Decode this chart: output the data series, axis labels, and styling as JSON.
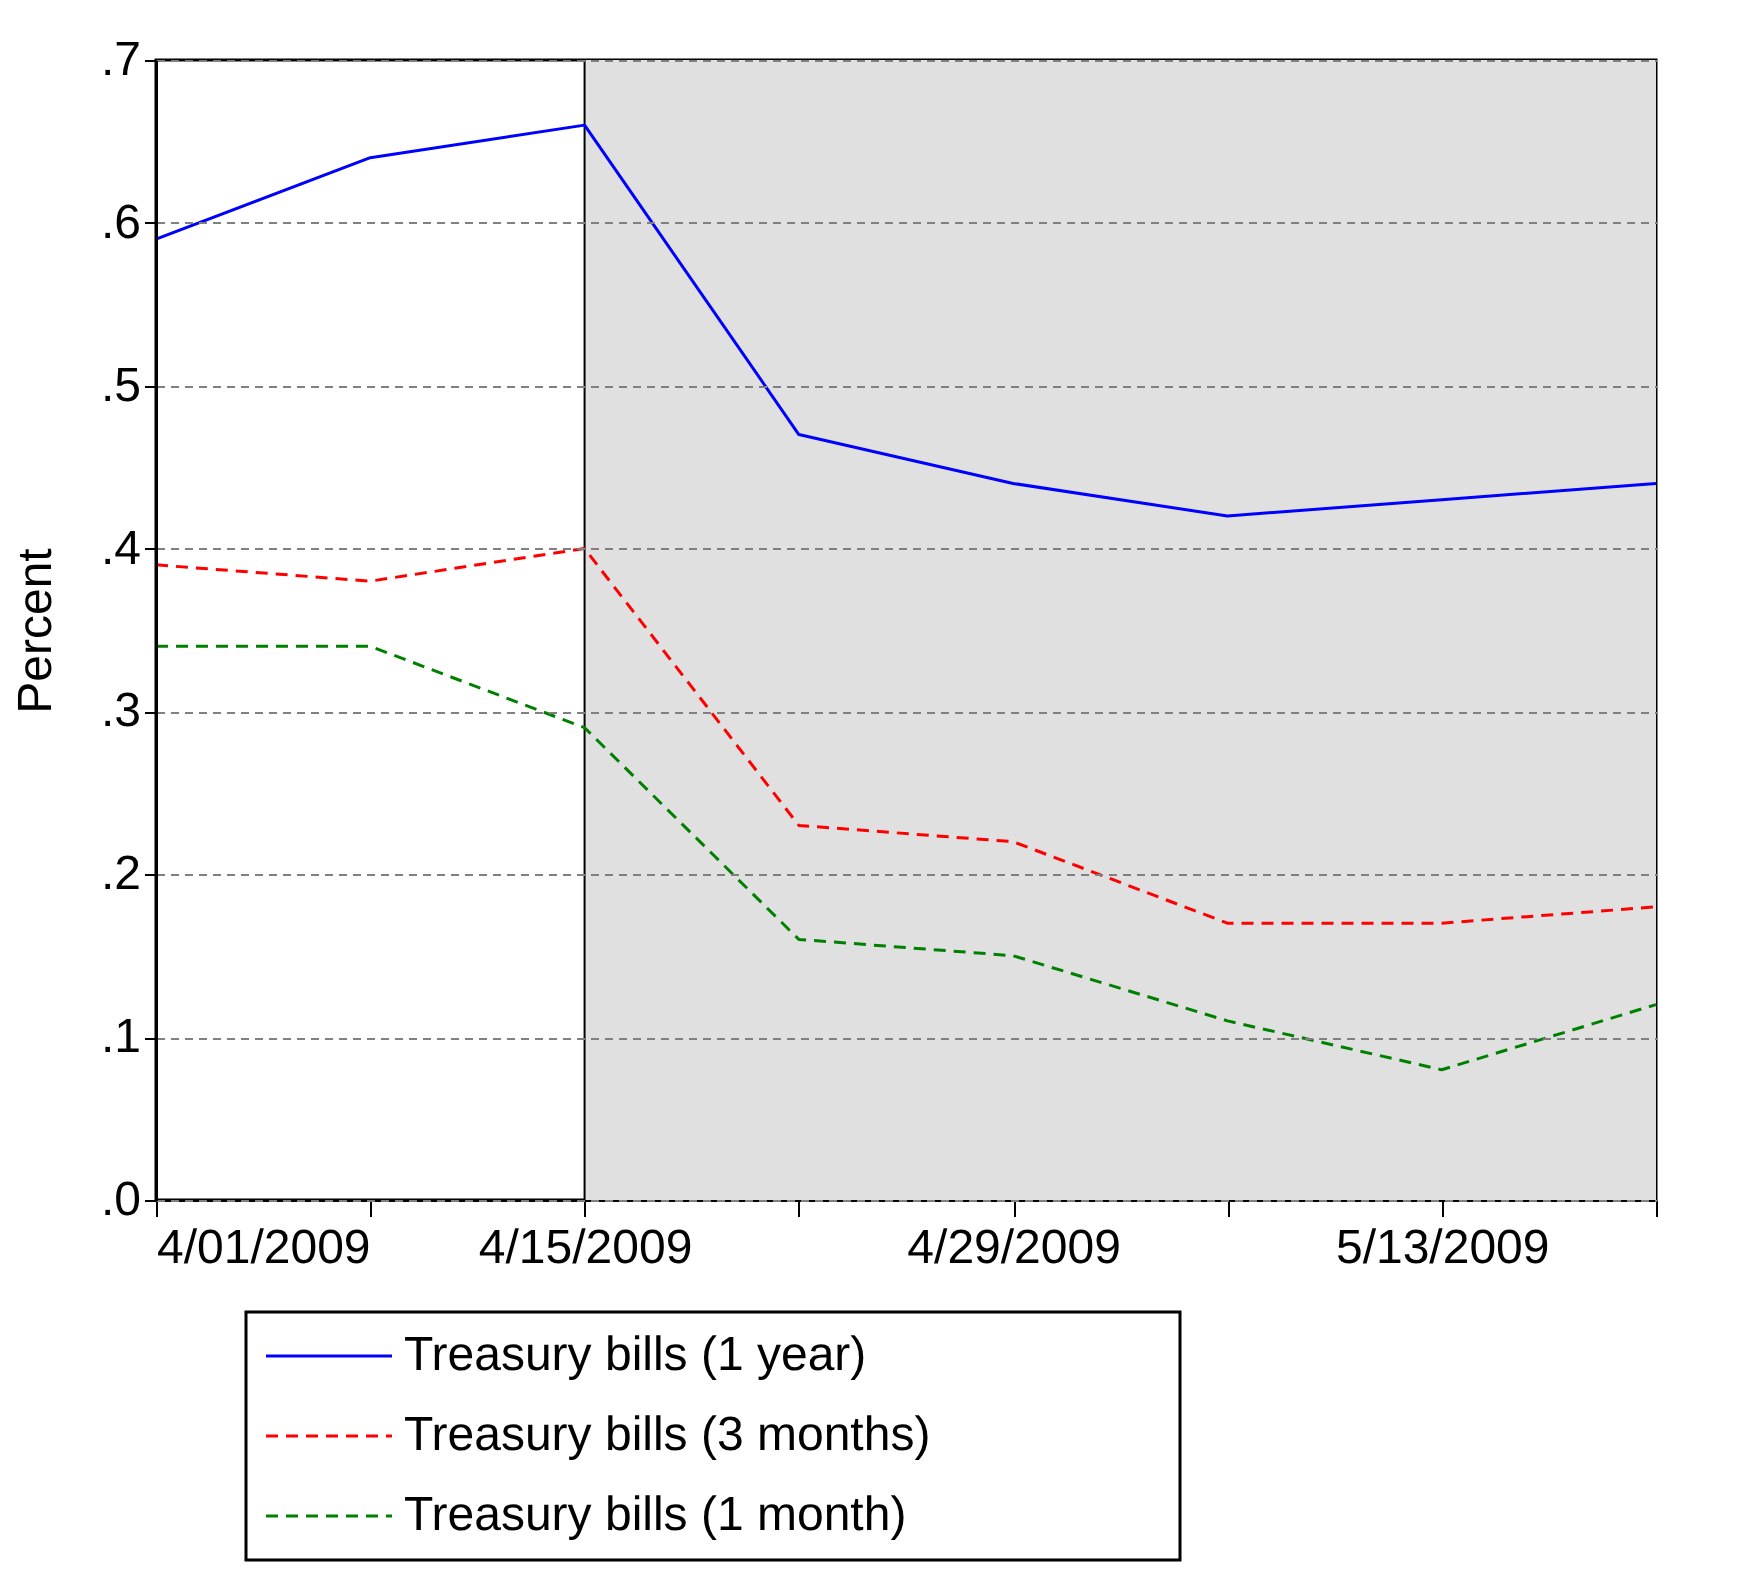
{
  "chart_data": {
    "type": "line",
    "ylabel": "Percent",
    "x": [
      "2009-04-01",
      "2009-04-08",
      "2009-04-15",
      "2009-04-22",
      "2009-04-29",
      "2009-05-06",
      "2009-05-13",
      "2009-05-20"
    ],
    "series": [
      {
        "name": "Treasury bills (1 year)",
        "color": "#0000ff",
        "line_style": "solid",
        "values": [
          0.59,
          0.64,
          0.66,
          0.47,
          0.44,
          0.42,
          0.43,
          0.44
        ]
      },
      {
        "name": "Treasury bills (3 months)",
        "color": "#ff0000",
        "line_style": "dashed",
        "values": [
          0.39,
          0.38,
          0.4,
          0.23,
          0.22,
          0.17,
          0.17,
          0.18
        ]
      },
      {
        "name": "Treasury bills (1 month)",
        "color": "#008000",
        "line_style": "dashed",
        "values": [
          0.34,
          0.34,
          0.29,
          0.16,
          0.15,
          0.11,
          0.08,
          0.12
        ]
      }
    ],
    "xlim": [
      "2009-04-01",
      "2009-05-20"
    ],
    "xticks": [
      {
        "value": "2009-04-01",
        "label": "4/01/2009"
      },
      {
        "value": "2009-04-08",
        "label": null
      },
      {
        "value": "2009-04-15",
        "label": "4/15/2009"
      },
      {
        "value": "2009-04-22",
        "label": null
      },
      {
        "value": "2009-04-29",
        "label": "4/29/2009"
      },
      {
        "value": "2009-05-06",
        "label": null
      },
      {
        "value": "2009-05-13",
        "label": "5/13/2009"
      },
      {
        "value": "2009-05-20",
        "label": null
      }
    ],
    "ylim": [
      0,
      0.7
    ],
    "yticks": [
      {
        "value": 0,
        "label": ".0"
      },
      {
        "value": 0.1,
        "label": ".1"
      },
      {
        "value": 0.2,
        "label": ".2"
      },
      {
        "value": 0.3,
        "label": ".3"
      },
      {
        "value": 0.4,
        "label": ".4"
      },
      {
        "value": 0.5,
        "label": ".5"
      },
      {
        "value": 0.6,
        "label": ".6"
      },
      {
        "value": 0.7,
        "label": ".7"
      }
    ],
    "bands": [
      {
        "axis": "x",
        "from": "2009-04-15",
        "to": "2009-05-20",
        "color": "#e0e0e0"
      }
    ],
    "ref_lines": [
      {
        "axis": "x",
        "value": "2009-04-15",
        "color": "#000000"
      }
    ],
    "grid": "y",
    "legend": "bottom"
  }
}
